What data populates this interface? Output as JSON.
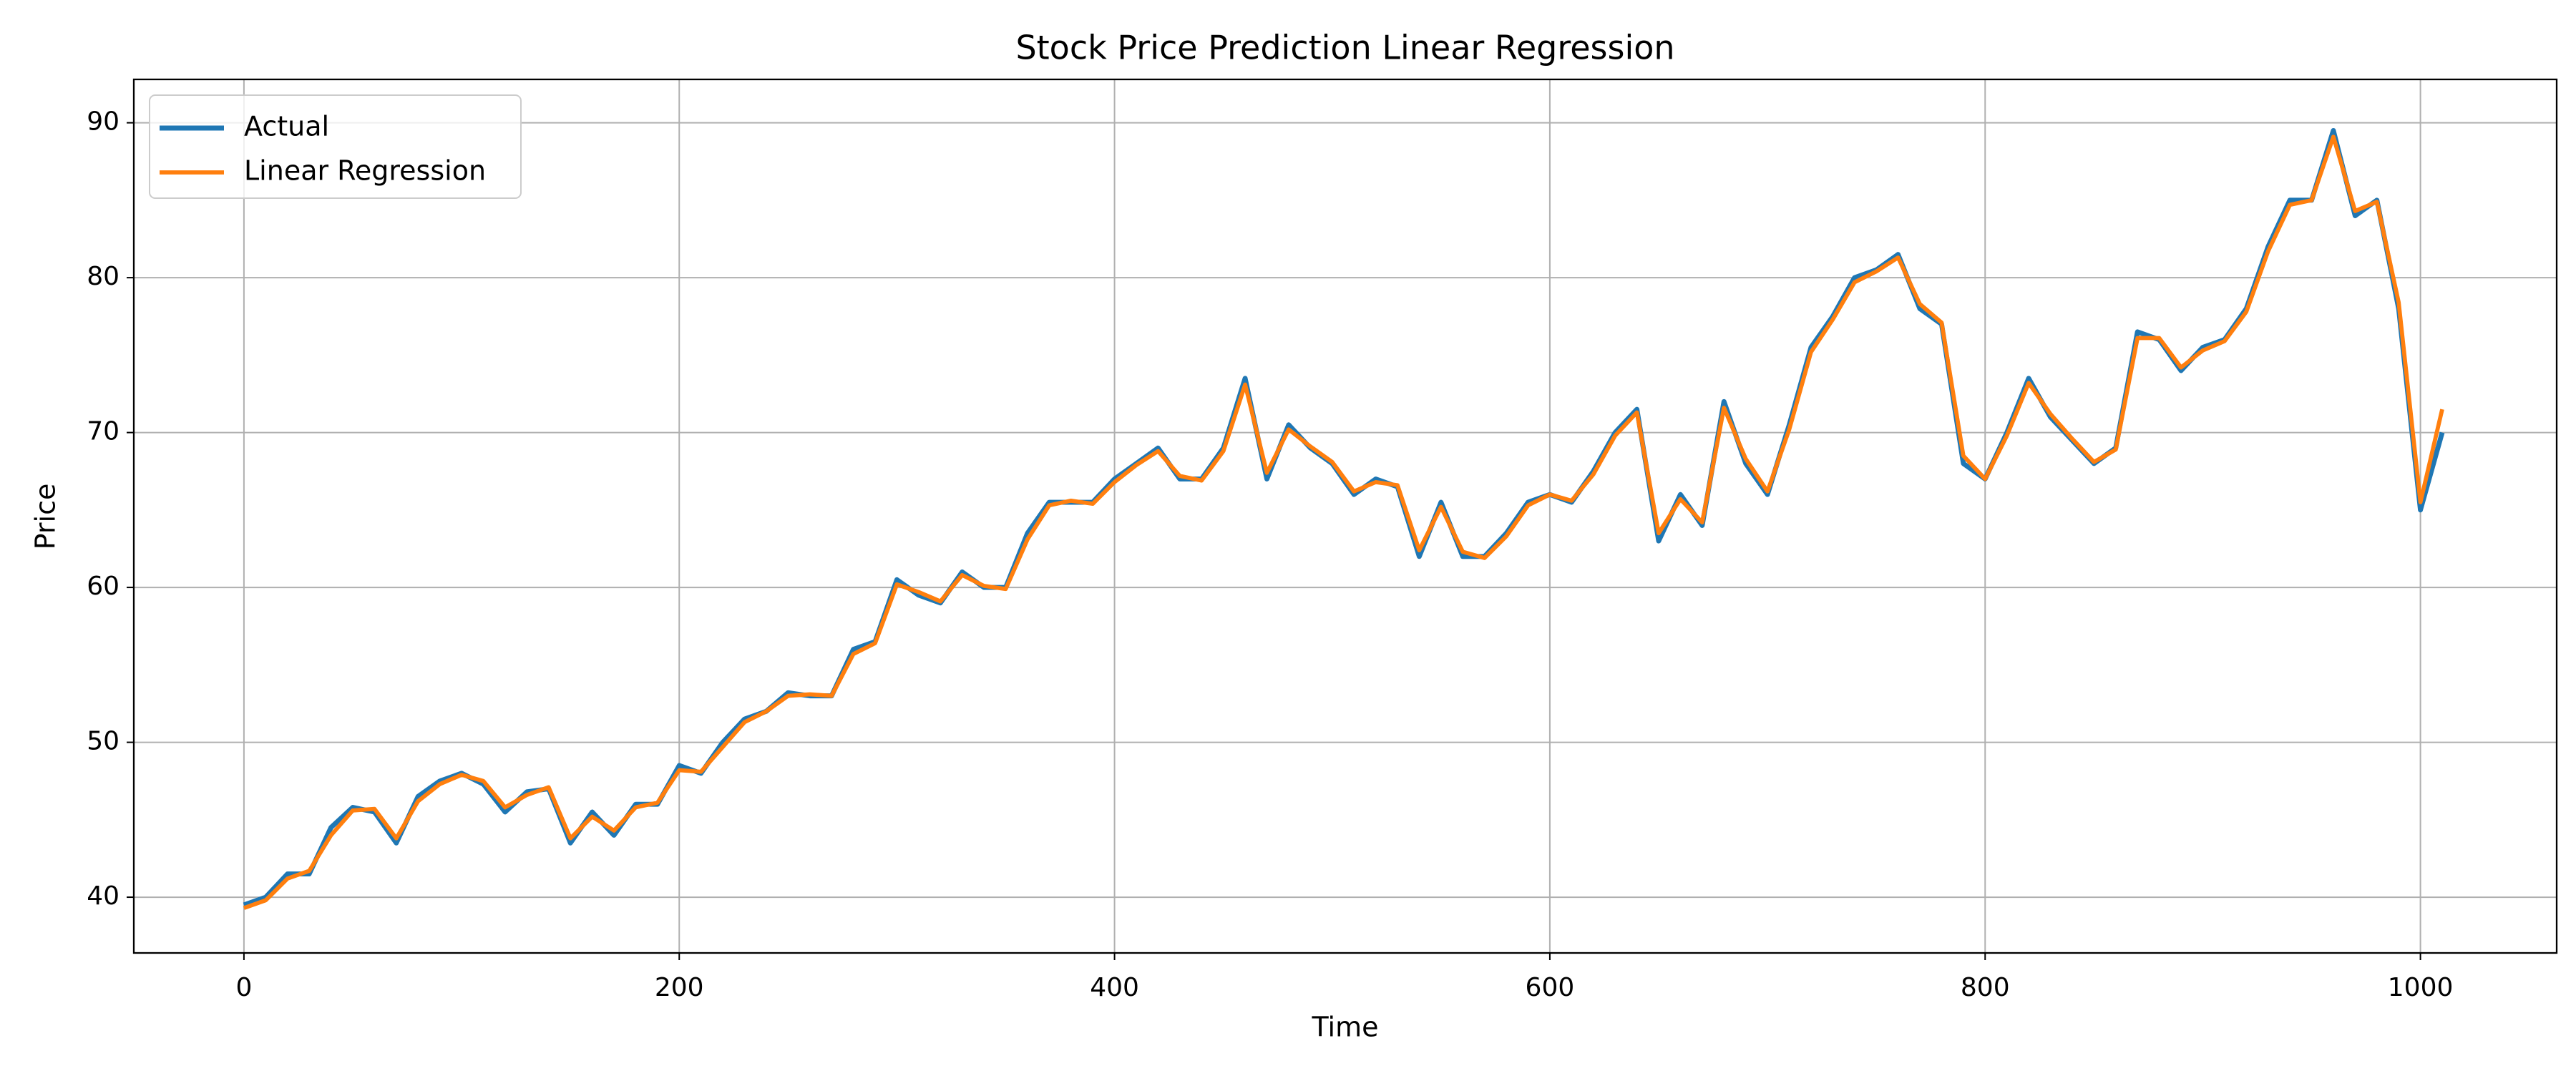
{
  "chart_data": {
    "type": "line",
    "title": "Stock Price Prediction Linear Regression",
    "xlabel": "Time",
    "ylabel": "Price",
    "x": [
      0,
      10,
      20,
      30,
      40,
      50,
      60,
      70,
      80,
      90,
      100,
      110,
      120,
      130,
      140,
      150,
      160,
      170,
      180,
      190,
      200,
      210,
      220,
      230,
      240,
      250,
      260,
      270,
      280,
      290,
      300,
      310,
      320,
      330,
      340,
      350,
      360,
      370,
      380,
      390,
      400,
      410,
      420,
      430,
      440,
      450,
      460,
      470,
      480,
      490,
      500,
      510,
      520,
      530,
      540,
      550,
      560,
      570,
      580,
      590,
      600,
      610,
      620,
      630,
      640,
      650,
      660,
      670,
      680,
      690,
      700,
      710,
      720,
      730,
      740,
      750,
      760,
      770,
      780,
      790,
      800,
      810,
      820,
      830,
      840,
      850,
      860,
      870,
      880,
      890,
      900,
      910,
      920,
      930,
      940,
      950,
      960,
      970,
      980,
      990,
      1000,
      1010
    ],
    "series": [
      {
        "name": "Actual",
        "color": "#1f77b4",
        "width": 3,
        "values": [
          39.5,
          40,
          41.5,
          41.5,
          44.5,
          45.8,
          45.5,
          43.5,
          46.5,
          47.5,
          48,
          47.3,
          45.5,
          46.8,
          47,
          43.5,
          45.5,
          44,
          46,
          46,
          48.5,
          48,
          50,
          51.5,
          52,
          53.2,
          53,
          53,
          56,
          56.5,
          60.5,
          59.5,
          59,
          61,
          60,
          60,
          63.5,
          65.5,
          65.5,
          65.5,
          67,
          68,
          69,
          67,
          67,
          69,
          73.5,
          67,
          70.5,
          69,
          68,
          66,
          67,
          66.5,
          62,
          65.5,
          62,
          62,
          63.5,
          65.5,
          66,
          65.5,
          67.5,
          70,
          71.5,
          63,
          66,
          64,
          72,
          68,
          66,
          70.5,
          75.5,
          77.5,
          80,
          80.5,
          81.5,
          78,
          77,
          68,
          67,
          70,
          73.5,
          71,
          69.5,
          68,
          69,
          76.5,
          76,
          74,
          75.5,
          76,
          78,
          82,
          85,
          85,
          89.5,
          84,
          85,
          78,
          65,
          70
        ]
      },
      {
        "name": "Linear Regression",
        "color": "#ff7f0e",
        "width": 2.5,
        "values": [
          39.3,
          39.8,
          41.2,
          41.7,
          44,
          45.6,
          45.7,
          43.8,
          46.2,
          47.3,
          47.9,
          47.5,
          45.8,
          46.6,
          47.1,
          43.8,
          45.2,
          44.3,
          45.8,
          46.1,
          48.2,
          48.1,
          49.7,
          51.3,
          52,
          53,
          53.1,
          53,
          55.7,
          56.4,
          60.2,
          59.7,
          59.1,
          60.8,
          60.1,
          59.9,
          63.1,
          65.3,
          65.6,
          65.4,
          66.8,
          67.9,
          68.8,
          67.2,
          66.9,
          68.8,
          73.1,
          67.4,
          70.2,
          69.1,
          68.1,
          66.2,
          66.8,
          66.6,
          62.4,
          65.2,
          62.3,
          61.9,
          63.3,
          65.3,
          66,
          65.6,
          67.3,
          69.8,
          71.3,
          63.5,
          65.7,
          64.2,
          71.6,
          68.3,
          66.2,
          70.2,
          75.2,
          77.3,
          79.7,
          80.4,
          81.3,
          78.3,
          77.1,
          68.5,
          67,
          69.8,
          73.2,
          71.2,
          69.6,
          68.1,
          68.9,
          76.1,
          76.1,
          74.2,
          75.3,
          75.9,
          77.8,
          81.7,
          84.7,
          85,
          89.1,
          84.3,
          84.9,
          78.4,
          65.5,
          71.5
        ]
      }
    ],
    "xlim": [
      -50.6,
      1062.6
    ],
    "ylim": [
      36.4,
      92.8
    ],
    "xticks": [
      0,
      200,
      400,
      600,
      800,
      1000
    ],
    "yticks": [
      40,
      50,
      60,
      70,
      80,
      90
    ],
    "grid": true,
    "legend": "upper left"
  }
}
